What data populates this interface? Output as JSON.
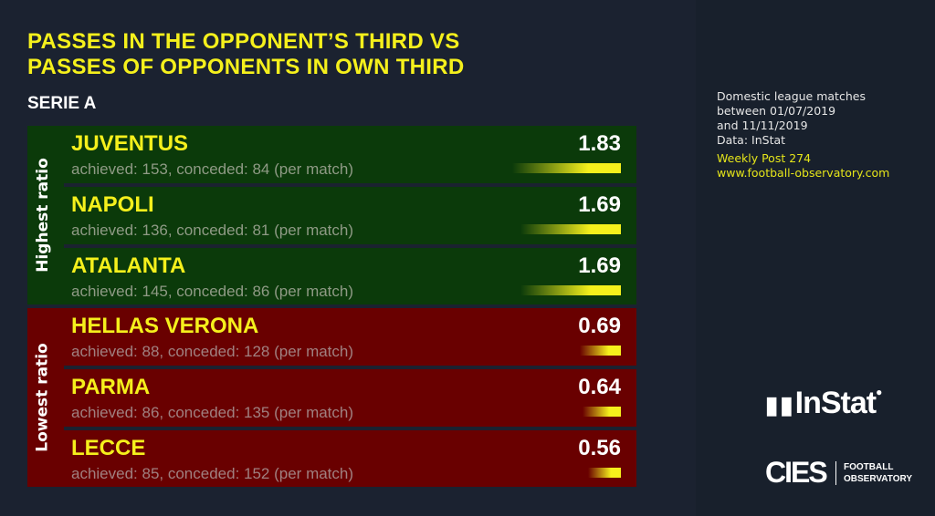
{
  "title_line1": "PASSES IN THE OPPONENT’S THIRD VS",
  "title_line2": "PASSES OF OPPONENTS IN OWN THIRD",
  "subtitle": "SERIE A",
  "info": {
    "l1": "Domestic league matches",
    "l2": "between 01/07/2019",
    "l3": "and 11/11/2019",
    "l4": "Data: InStat",
    "post": "Weekly Post 274",
    "url": "www.football-observatory.com"
  },
  "groups": [
    {
      "label": "Highest ratio",
      "teams": [
        {
          "name": "JUVENTUS",
          "detail": "achieved: 153, conceded: 84 (per match)",
          "ratio": "1.83",
          "value": 1.83
        },
        {
          "name": "NAPOLI",
          "detail": "achieved: 136, conceded: 81 (per match)",
          "ratio": "1.69",
          "value": 1.69
        },
        {
          "name": "ATALANTA",
          "detail": "achieved: 145, conceded: 86 (per match)",
          "ratio": "1.69",
          "value": 1.69
        }
      ]
    },
    {
      "label": "Lowest ratio",
      "teams": [
        {
          "name": "HELLAS VERONA",
          "detail": "achieved: 88, conceded: 128 (per match)",
          "ratio": "0.69",
          "value": 0.69
        },
        {
          "name": "PARMA",
          "detail": "achieved: 86, conceded: 135 (per match)",
          "ratio": "0.64",
          "value": 0.64
        },
        {
          "name": "LECCE",
          "detail": "achieved: 85, conceded: 152 (per match)",
          "ratio": "0.56",
          "value": 0.56
        }
      ]
    }
  ],
  "logos": {
    "instat": "InStat",
    "cies": "CIES",
    "fo1": "FOOTBALL",
    "fo2": "OBSERVATORY"
  },
  "colors": {
    "accent": "#f5f01c",
    "high": "#0b3a0a",
    "low": "#690000"
  }
}
